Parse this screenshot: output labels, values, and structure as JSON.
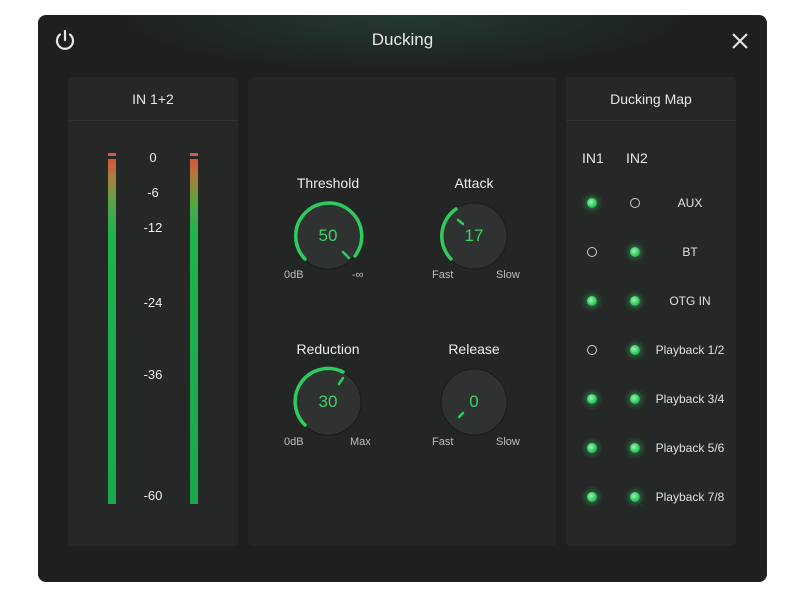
{
  "window": {
    "title": "Ducking"
  },
  "meter": {
    "title": "IN 1+2",
    "scale": [
      "0",
      "-6",
      "-12",
      "-24",
      "-36",
      "-60"
    ]
  },
  "controls": {
    "threshold": {
      "title": "Threshold",
      "value": "50",
      "min_label": "0dB",
      "max_label": "-∞"
    },
    "attack": {
      "title": "Attack",
      "value": "17",
      "min_label": "Fast",
      "max_label": "Slow"
    },
    "reduction": {
      "title": "Reduction",
      "value": "30",
      "min_label": "0dB",
      "max_label": "Max"
    },
    "release": {
      "title": "Release",
      "value": "0",
      "min_label": "Fast",
      "max_label": "Slow"
    }
  },
  "ducking_map": {
    "title": "Ducking Map",
    "columns": [
      "IN1",
      "IN2"
    ],
    "rows": [
      {
        "label": "AUX",
        "in1": true,
        "in2": false
      },
      {
        "label": "BT",
        "in1": false,
        "in2": true
      },
      {
        "label": "OTG IN",
        "in1": true,
        "in2": true
      },
      {
        "label": "Playback 1/2",
        "in1": false,
        "in2": true
      },
      {
        "label": "Playback 3/4",
        "in1": true,
        "in2": true
      },
      {
        "label": "Playback 5/6",
        "in1": true,
        "in2": true
      },
      {
        "label": "Playback 7/8",
        "in1": true,
        "in2": true
      }
    ]
  },
  "colors": {
    "accent": "#2ecc5f",
    "meter_peak": "#e25548",
    "background": "#1e1f1f"
  },
  "icons": {
    "power": "power-icon",
    "close": "close-icon"
  }
}
